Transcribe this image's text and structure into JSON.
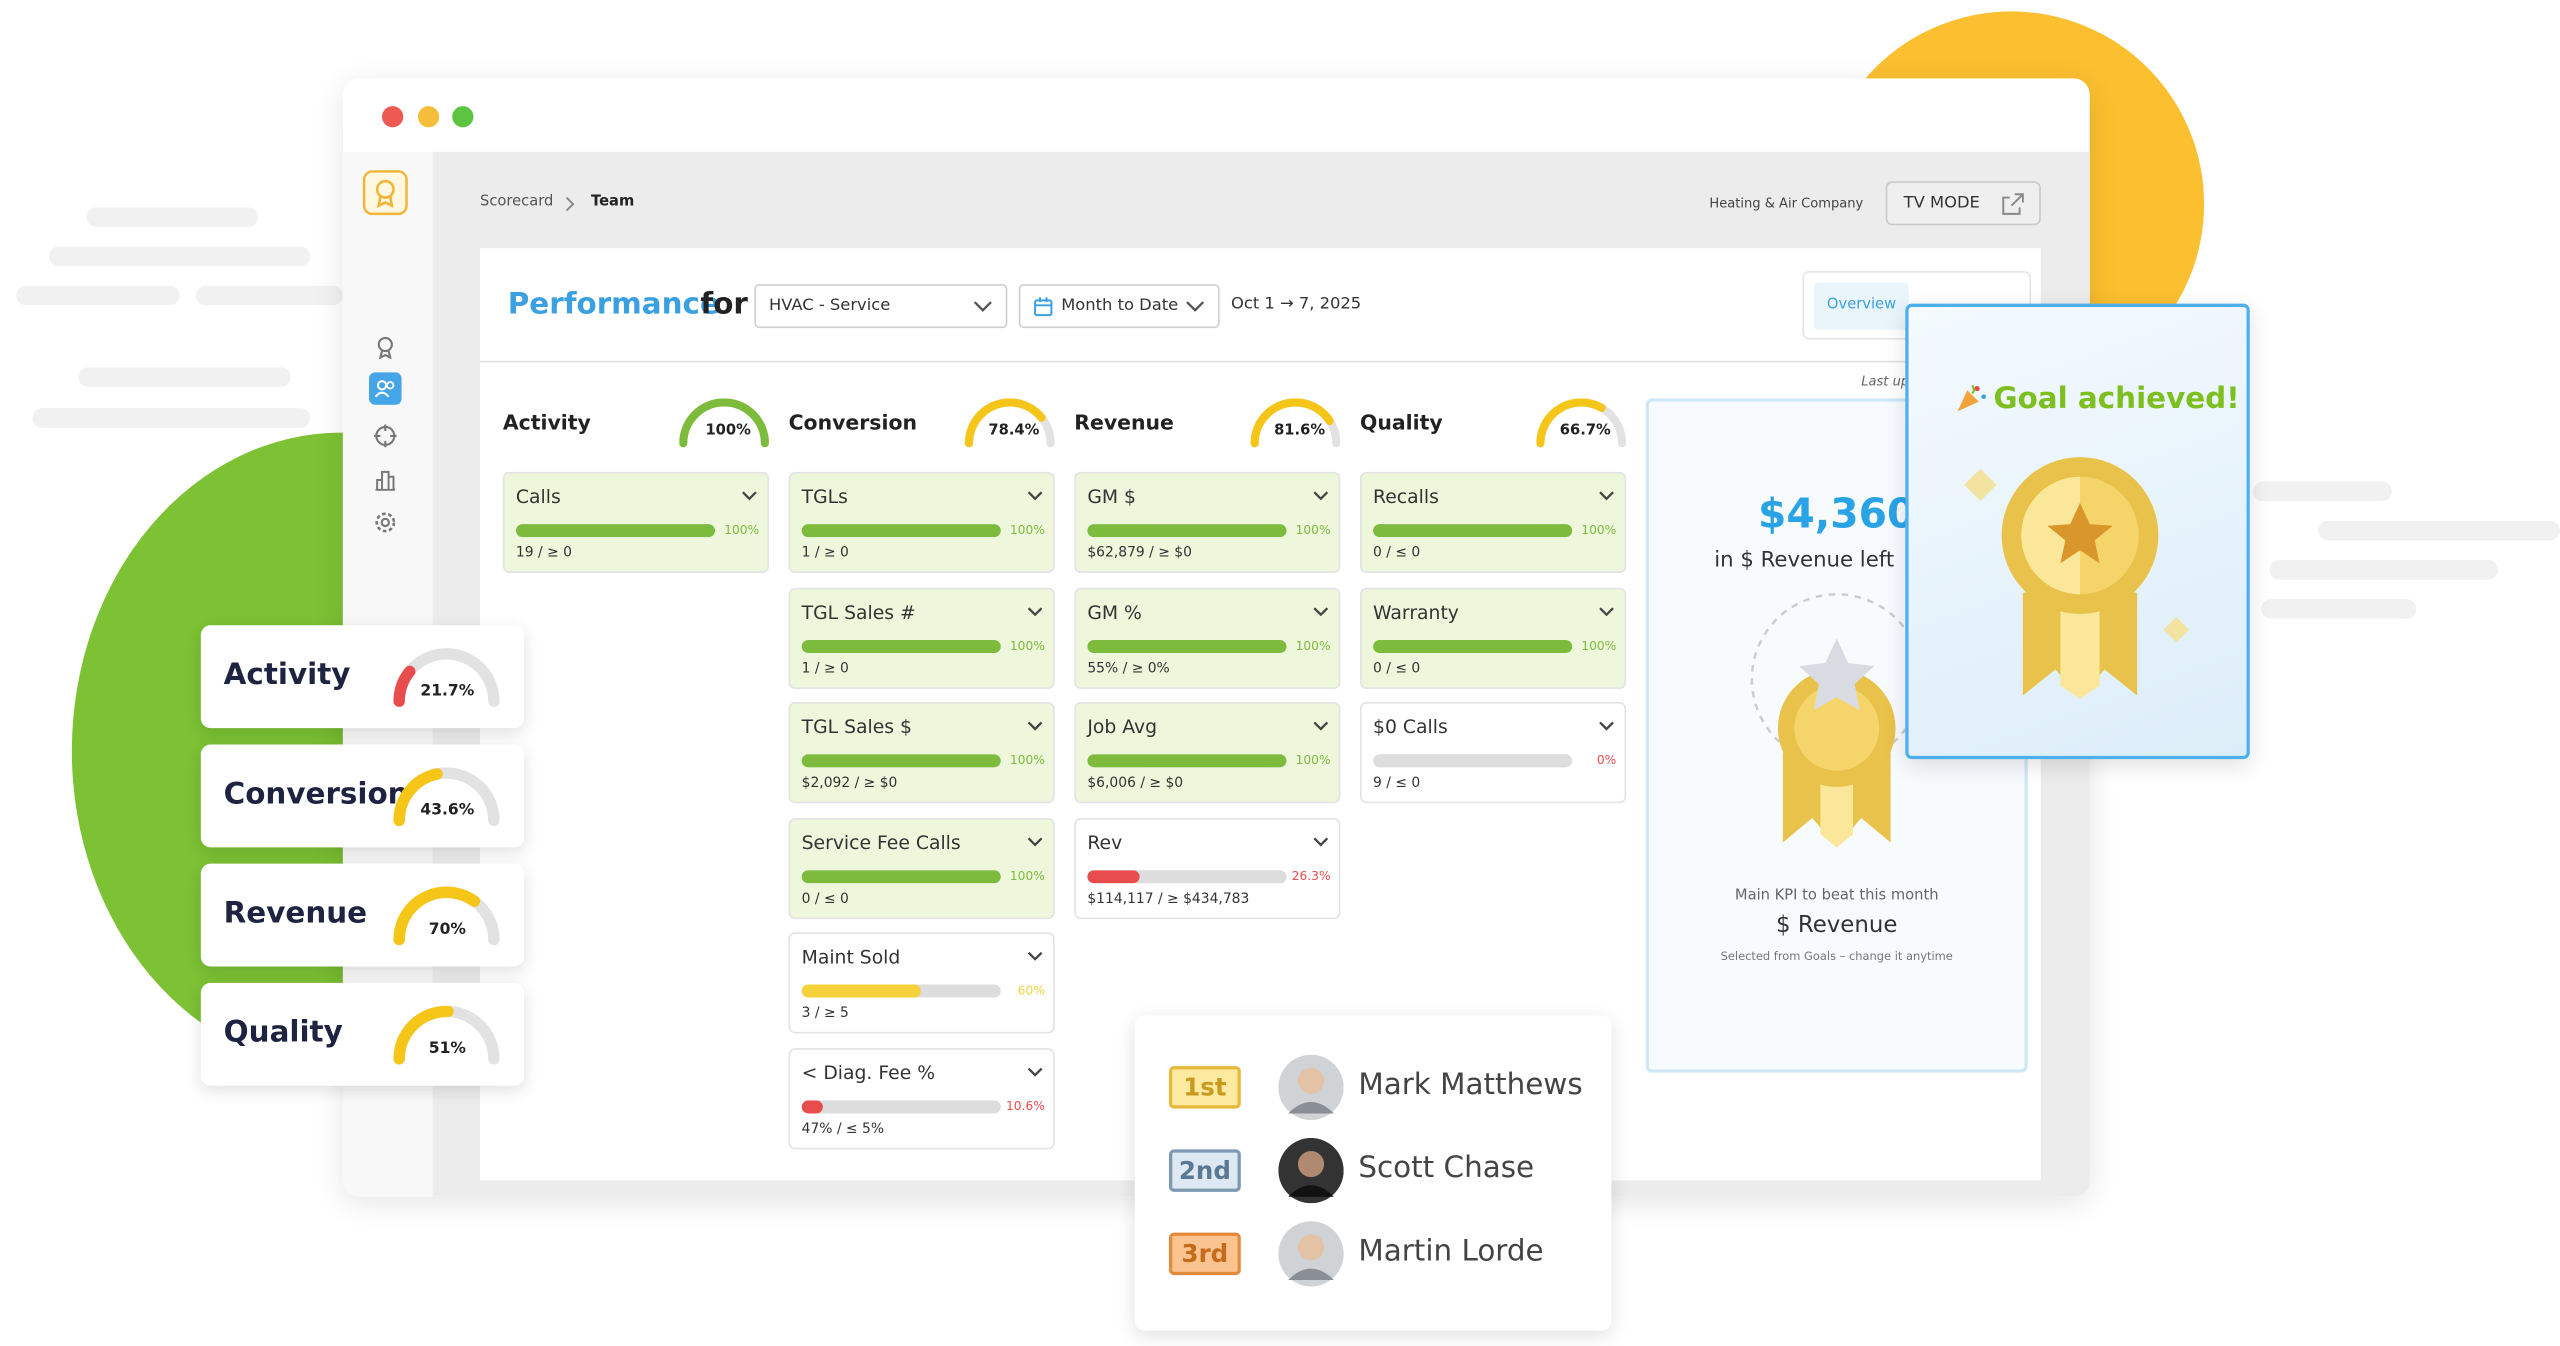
{
  "window": {
    "breadcrumb": [
      "Scorecard",
      "Team"
    ],
    "company": "Heating & Air Company",
    "tv_mode": "TV MODE"
  },
  "header": {
    "title": "Performance",
    "for": "for",
    "team": "HVAC - Service",
    "period": "Month to Date",
    "dates": "Oct 1 → 7, 2025",
    "tab": "Overview",
    "last_updated": "Last up"
  },
  "columns": [
    {
      "name": "Activity",
      "gauge": 100,
      "gauge_label": "100%",
      "color": "#7dbb3c",
      "metrics": [
        {
          "name": "Calls",
          "percent": 100,
          "percent_label": "100%",
          "detail": "19 / ≥ 0",
          "color": "#7dbb3c",
          "met": true
        }
      ]
    },
    {
      "name": "Conversion",
      "gauge": 78.4,
      "gauge_label": "78.4%",
      "color": "#f5c518",
      "metrics": [
        {
          "name": "TGLs",
          "percent": 100,
          "percent_label": "100%",
          "detail": "1 / ≥ 0",
          "color": "#7dbb3c",
          "met": true
        },
        {
          "name": "TGL Sales #",
          "percent": 100,
          "percent_label": "100%",
          "detail": "1 / ≥ 0",
          "color": "#7dbb3c",
          "met": true
        },
        {
          "name": "TGL Sales $",
          "percent": 100,
          "percent_label": "100%",
          "detail": "$2,092 / ≥ $0",
          "color": "#7dbb3c",
          "met": true
        },
        {
          "name": "Service Fee Calls",
          "percent": 100,
          "percent_label": "100%",
          "detail": "0 / ≤ 0",
          "color": "#7dbb3c",
          "met": true
        },
        {
          "name": "Maint Sold",
          "percent": 60,
          "percent_label": "60%",
          "detail": "3 / ≥ 5",
          "color": "#f5d23c",
          "met": false
        },
        {
          "name": "< Diag. Fee %",
          "percent": 10.6,
          "percent_label": "10.6%",
          "detail": "47% / ≤ 5%",
          "color": "#e84c4c",
          "met": false
        }
      ]
    },
    {
      "name": "Revenue",
      "gauge": 81.6,
      "gauge_label": "81.6%",
      "color": "#f5c518",
      "metrics": [
        {
          "name": "GM $",
          "percent": 100,
          "percent_label": "100%",
          "detail": "$62,879 / ≥ $0",
          "color": "#7dbb3c",
          "met": true
        },
        {
          "name": "GM %",
          "percent": 100,
          "percent_label": "100%",
          "detail": "55% / ≥ 0%",
          "color": "#7dbb3c",
          "met": true
        },
        {
          "name": "Job Avg",
          "percent": 100,
          "percent_label": "100%",
          "detail": "$6,006 / ≥ $0",
          "color": "#7dbb3c",
          "met": true
        },
        {
          "name": "Rev",
          "percent": 26.3,
          "percent_label": "26.3%",
          "detail": "$114,117 / ≥ $434,783",
          "color": "#e84c4c",
          "met": false
        }
      ]
    },
    {
      "name": "Quality",
      "gauge": 66.7,
      "gauge_label": "66.7%",
      "color": "#f5c518",
      "metrics": [
        {
          "name": "Recalls",
          "percent": 100,
          "percent_label": "100%",
          "detail": "0 / ≤ 0",
          "color": "#7dbb3c",
          "met": true
        },
        {
          "name": "Warranty",
          "percent": 100,
          "percent_label": "100%",
          "detail": "0 / ≤ 0",
          "color": "#7dbb3c",
          "met": true
        },
        {
          "name": "$0 Calls",
          "percent": 0,
          "percent_label": "0%",
          "detail": "9 / ≤ 0",
          "color": "#e84c4c",
          "met": false
        }
      ]
    }
  ],
  "goal": {
    "amount": "$4,360",
    "left": "in $ Revenue left",
    "kpi_caption": "Main KPI to beat this month",
    "kpi": "$ Revenue",
    "note": "Selected from Goals – change it anytime"
  },
  "achievement": {
    "title": "Goal achieved!"
  },
  "summary": [
    {
      "name": "Activity",
      "gauge": 21.7,
      "gauge_label": "21.7%",
      "color": "#e84c4c"
    },
    {
      "name": "Conversion",
      "gauge": 43.6,
      "gauge_label": "43.6%",
      "color": "#f5c518"
    },
    {
      "name": "Revenue",
      "gauge": 70,
      "gauge_label": "70%",
      "color": "#f5c518"
    },
    {
      "name": "Quality",
      "gauge": 51,
      "gauge_label": "51%",
      "color": "#f5c518"
    }
  ],
  "leaderboard": [
    {
      "rank": "1st",
      "name": "Mark Matthews",
      "badge": "#fde9a0",
      "border": "#e8b93a",
      "text": "#c99a1f"
    },
    {
      "rank": "2nd",
      "name": "Scott Chase",
      "badge": "#dde8f2",
      "border": "#7c98b3",
      "text": "#5b7893"
    },
    {
      "rank": "3rd",
      "name": "Martin Lorde",
      "badge": "#fbc38f",
      "border": "#e58a3a",
      "text": "#c46b1c"
    }
  ]
}
